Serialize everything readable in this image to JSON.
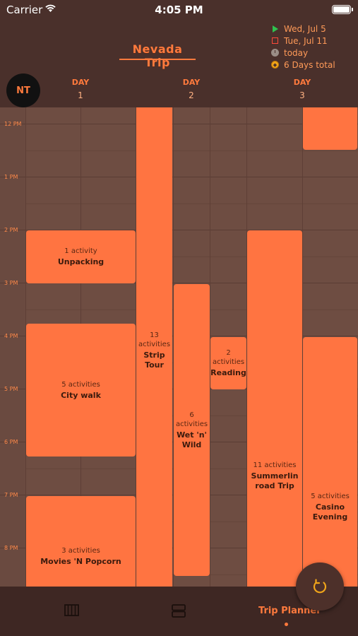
{
  "status_bar": {
    "carrier": "Carrier",
    "time": "4:05 PM"
  },
  "header": {
    "title": "Nevada Trip",
    "avatar_initials": "NT",
    "start_date": "Wed, Jul 5",
    "end_date": "Tue, Jul 11",
    "today_label": "today",
    "total_label": "6 Days total"
  },
  "days": [
    {
      "label": "DAY",
      "number": "1"
    },
    {
      "label": "DAY",
      "number": "2"
    },
    {
      "label": "DAY",
      "number": "3"
    }
  ],
  "hours": [
    "12 PM",
    "1 PM",
    "2 PM",
    "3 PM",
    "4 PM",
    "5 PM",
    "6 PM",
    "7 PM",
    "8 PM"
  ],
  "events": [
    {
      "count": "",
      "name": ""
    },
    {
      "count": "1 activity",
      "name": "Unpacking"
    },
    {
      "count": "5 activities",
      "name": "City walk"
    },
    {
      "count": "3 activities",
      "name": "Movies 'N Popcorn"
    },
    {
      "count": "13 activities",
      "name": "Strip Tour"
    },
    {
      "count": "6 activities",
      "name": "Wet 'n' Wild"
    },
    {
      "count": "2 activities",
      "name": "Reading"
    },
    {
      "count": "11 activities",
      "name": "Summerlin road Trip"
    },
    {
      "count": "5 activities",
      "name": "Casino Evening"
    }
  ],
  "tabbar": {
    "active_label": "Trip Planner",
    "tabs": [
      "columns-icon",
      "rows-icon",
      "Trip Planner"
    ]
  },
  "colors": {
    "accent": "#ff7441",
    "background": "#4a302b",
    "grid": "#6e4d42"
  }
}
